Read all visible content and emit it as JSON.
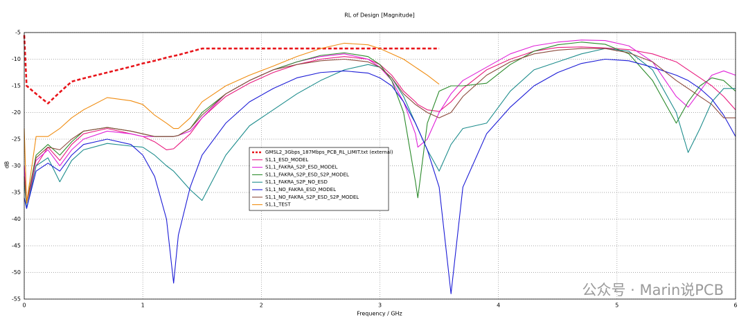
{
  "chart_data": {
    "type": "line",
    "title": "RL of Design [Magnitude]",
    "x_label": "Frequency / GHz",
    "y_label": "dB",
    "watermark": "公众号 · Marin说PCB",
    "grid": true,
    "xlim": [
      0,
      6
    ],
    "xticks": [
      0,
      1,
      2,
      3,
      4,
      5,
      6
    ],
    "ylim": [
      -55,
      -5
    ],
    "yticks": [
      -5,
      -10,
      -15,
      -20,
      -25,
      -30,
      -35,
      -40,
      -45,
      -50,
      -55
    ],
    "x": [
      0,
      0.02,
      0.1,
      0.2,
      0.3,
      0.4,
      0.5,
      0.7,
      0.9,
      1.0,
      1.1,
      1.2,
      1.26,
      1.3,
      1.4,
      1.5,
      1.7,
      1.9,
      2.1,
      2.3,
      2.5,
      2.7,
      2.9,
      3.0,
      3.1,
      3.2,
      3.3,
      3.32,
      3.4,
      3.5,
      3.6,
      3.7,
      3.9,
      4.1,
      4.3,
      4.5,
      4.7,
      4.9,
      5.1,
      5.3,
      5.5,
      5.6,
      5.7,
      5.8,
      5.9,
      6.0
    ],
    "series": [
      {
        "name": "GMSL2_3Gbps_187Mbps_PCB_RL_LIMIT.txt (external)",
        "color": "#e8141a",
        "dashed": true,
        "values": [
          -5.5,
          -15,
          -16.5,
          -18.3,
          -16.2,
          -14.2,
          -13.6,
          -12.5,
          -11.4,
          -10.8,
          -10.3,
          -9.7,
          -9.4,
          -9.2,
          -8.6,
          -8,
          -8,
          -8,
          -8,
          -8,
          -8,
          -8,
          -8,
          -8,
          -8,
          -8,
          -8,
          -8,
          -8,
          -8,
          null,
          null,
          null,
          null,
          null,
          null,
          null,
          null,
          null,
          null,
          null,
          null,
          null,
          null,
          null,
          null
        ]
      },
      {
        "name": "S1,1_ESD_MODEL",
        "color": "#e8197d",
        "values": [
          -30,
          -37,
          -30,
          -26.5,
          -29,
          -26,
          -24,
          -23,
          -24,
          -24.5,
          -25.5,
          -27,
          -26.8,
          -26,
          -24,
          -21,
          -17,
          -14.5,
          -12.5,
          -11,
          -10,
          -9.5,
          -10,
          -11,
          -13,
          -16,
          -18,
          -18.5,
          -19.5,
          -19.8,
          -18,
          -15.5,
          -12,
          -10,
          -8.5,
          -7.8,
          -7.7,
          -7.9,
          -8.2,
          -9,
          -10.5,
          -12,
          -13.5,
          -15,
          -17,
          -19.5
        ]
      },
      {
        "name": "S1,1_FAKRA_S2P_ESD_MODEL",
        "color": "#e020d8",
        "values": [
          -30,
          -37,
          -29,
          -27,
          -30,
          -27,
          -25,
          -23.5,
          -24,
          -24.5,
          -24.5,
          -24.5,
          -24.5,
          -24.3,
          -23.5,
          -21,
          -16.5,
          -14,
          -12,
          -10.5,
          -9.5,
          -9,
          -10,
          -11.5,
          -14,
          -18,
          -24,
          -26.5,
          -25,
          -20,
          -16.5,
          -14,
          -11.5,
          -9,
          -7.5,
          -6.8,
          -6.4,
          -6.5,
          -7.5,
          -10.5,
          -17,
          -19,
          -16,
          -13,
          -12.2,
          -13
        ]
      },
      {
        "name": "S1,1_FAKRA_S2P_ESD_S2P_MODEL",
        "color": "#2a8a2a",
        "values": [
          -32,
          -37,
          -28,
          -26,
          -28,
          -25.5,
          -23.5,
          -22.8,
          -23.5,
          -24,
          -24.5,
          -24.5,
          -24.5,
          -24.3,
          -23,
          -20,
          -16.5,
          -14,
          -12,
          -10.5,
          -9.3,
          -8.8,
          -9.5,
          -11,
          -14,
          -20,
          -33,
          -36,
          -22,
          -16,
          -15,
          -15,
          -14.5,
          -11,
          -8.5,
          -7.3,
          -6.8,
          -7.2,
          -9,
          -14,
          -22,
          -18,
          -15,
          -13.5,
          -14,
          -16
        ]
      },
      {
        "name": "S1,1_FAKRA_S2P_NO_ESD",
        "color": "#1c8c8c",
        "values": [
          -33,
          -38,
          -30,
          -28.5,
          -33,
          -29,
          -27,
          -25.8,
          -26.3,
          -26.5,
          -28,
          -30,
          -31,
          -32,
          -34.5,
          -36.5,
          -28,
          -22.5,
          -19.5,
          -16.5,
          -14,
          -12,
          -11,
          -11.5,
          -13.5,
          -17,
          -22,
          -23,
          -27,
          -31,
          -26,
          -23,
          -22,
          -16,
          -12,
          -10.5,
          -9,
          -8,
          -8.5,
          -12,
          -20,
          -27.5,
          -23,
          -18,
          -15.5,
          -15.5
        ]
      },
      {
        "name": "S1,1_NO_FAKRA_ESD_MODEL",
        "color": "#1a1ad6",
        "values": [
          -36,
          -38,
          -31,
          -29.5,
          -31,
          -28,
          -26,
          -25,
          -26,
          -28,
          -32,
          -40,
          -52,
          -43,
          -34,
          -28,
          -22,
          -18,
          -15.5,
          -13.5,
          -12.5,
          -12.2,
          -12.6,
          -13.5,
          -15,
          -18,
          -22,
          -23,
          -27,
          -34,
          -54,
          -34,
          -24,
          -19,
          -15,
          -12.5,
          -10.8,
          -10,
          -10.3,
          -11.5,
          -13,
          -14,
          -15.5,
          -17.5,
          -20.5,
          -24.5
        ]
      },
      {
        "name": "S1,1_NO_FAKRA_S2P_ESD_S2P_MODEL",
        "color": "#8c4a3c",
        "values": [
          -32,
          -37,
          -28.5,
          -26.5,
          -27,
          -25,
          -23.5,
          -22.8,
          -23.5,
          -24,
          -24.5,
          -24.5,
          -24.5,
          -24.3,
          -23,
          -20.5,
          -16.5,
          -14,
          -12,
          -11,
          -10.3,
          -10,
          -10.5,
          -11.5,
          -13.5,
          -16.5,
          -18.5,
          -18.8,
          -20,
          -21,
          -20,
          -17,
          -13,
          -10.5,
          -9,
          -8.3,
          -8,
          -8,
          -8.8,
          -10.5,
          -14,
          -15.5,
          -17,
          -18.5,
          -21,
          -21
        ]
      },
      {
        "name": "S1,1_TEST",
        "color": "#f08c10",
        "values": [
          -23,
          -37,
          -24.5,
          -24.5,
          -23,
          -21,
          -19.5,
          -17.2,
          -17.8,
          -18.5,
          -20.5,
          -22,
          -23,
          -23,
          -21,
          -18,
          -15,
          -13,
          -11.3,
          -9.5,
          -8,
          -7,
          -7.3,
          -8,
          -9,
          -10,
          -11.5,
          -11.8,
          -13,
          -14.7,
          null,
          null,
          null,
          null,
          null,
          null,
          null,
          null,
          null,
          null,
          null,
          null,
          null,
          null,
          null,
          null
        ]
      }
    ]
  }
}
